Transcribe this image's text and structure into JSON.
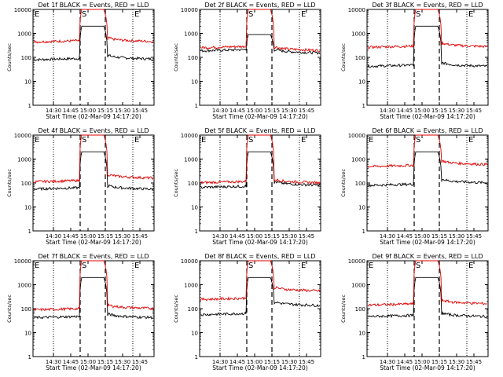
{
  "figure": {
    "background": "#ffffff"
  },
  "chart_data": [
    {
      "type": "line",
      "detector": "1f",
      "title": "Det 1f BLACK = Events, RED = LLD",
      "xlabel": "Start Time (02-Mar-09 14:17:20)",
      "ylabel": "Counts/sec",
      "x_ticks": [
        "14:30",
        "14:45",
        "15:00",
        "15:15",
        "15:30",
        "15:45"
      ],
      "y_ticks": [
        "1",
        "10",
        "100",
        "1000",
        "10000"
      ],
      "yscale": "log",
      "ylim": [
        1,
        10000
      ],
      "markers": [
        {
          "label": "E",
          "pos": "left"
        },
        {
          "label": "S",
          "pos": "mid"
        },
        {
          "label": "E",
          "pos": "right"
        }
      ],
      "series": [
        {
          "color": "#000000",
          "pre": 85,
          "post": 100,
          "in_gap": 2000
        },
        {
          "color": "#dd0000",
          "pre": 470,
          "post": 540,
          "in_gap": 10000
        }
      ]
    },
    {
      "type": "line",
      "detector": "2f",
      "title": "Det 2f BLACK = Events, RED = LLD",
      "xlabel": "Start Time (02-Mar-09 14:17:20)",
      "ylabel": "Counts/sec",
      "x_ticks": [
        "14:30",
        "14:45",
        "15:00",
        "15:15",
        "15:30",
        "15:45"
      ],
      "y_ticks": [
        "1",
        "10",
        "100",
        "1000",
        "10000"
      ],
      "yscale": "log",
      "ylim": [
        1,
        10000
      ],
      "markers": [
        {
          "label": "S",
          "pos": "mid"
        },
        {
          "label": "E",
          "pos": "right"
        }
      ],
      "series": [
        {
          "color": "#000000",
          "pre": 200,
          "post": 180,
          "in_gap": 900
        },
        {
          "color": "#dd0000",
          "pre": 270,
          "post": 230,
          "in_gap": 10000
        }
      ]
    },
    {
      "type": "line",
      "detector": "3f",
      "title": "Det 3f BLACK = Events, RED = LLD",
      "xlabel": "Start Time (02-Mar-09 14:17:20)",
      "ylabel": "Counts/sec",
      "x_ticks": [
        "14:30",
        "14:45",
        "15:00",
        "15:15",
        "15:30",
        "15:45"
      ],
      "y_ticks": [
        "1",
        "10",
        "100",
        "1000",
        "10000"
      ],
      "yscale": "log",
      "ylim": [
        1,
        10000
      ],
      "markers": [
        {
          "label": "S",
          "pos": "mid"
        },
        {
          "label": "E",
          "pos": "right"
        }
      ],
      "series": [
        {
          "color": "#000000",
          "pre": 45,
          "post": 50,
          "in_gap": 2000
        },
        {
          "color": "#dd0000",
          "pre": 280,
          "post": 330,
          "in_gap": 10000
        }
      ]
    },
    {
      "type": "line",
      "detector": "4f",
      "title": "Det 4f BLACK = Events, RED = LLD",
      "xlabel": "Start Time (02-Mar-09 14:17:20)",
      "ylabel": "Counts/sec",
      "x_ticks": [
        "14:30",
        "14:45",
        "15:00",
        "15:15",
        "15:30",
        "15:45"
      ],
      "y_ticks": [
        "1",
        "10",
        "100",
        "1000",
        "10000"
      ],
      "yscale": "log",
      "ylim": [
        1,
        10000
      ],
      "markers": [
        {
          "label": "E",
          "pos": "left"
        },
        {
          "label": "S",
          "pos": "mid"
        },
        {
          "label": "E",
          "pos": "right"
        }
      ],
      "series": [
        {
          "color": "#000000",
          "pre": 60,
          "post": 65,
          "in_gap": 2000
        },
        {
          "color": "#dd0000",
          "pre": 120,
          "post": 190,
          "in_gap": 10000
        }
      ]
    },
    {
      "type": "line",
      "detector": "5f",
      "title": "Det 5f BLACK = Events, RED = LLD",
      "xlabel": "Start Time (02-Mar-09 14:17:20)",
      "ylabel": "Counts/sec",
      "x_ticks": [
        "14:30",
        "14:45",
        "15:00",
        "15:15",
        "15:30",
        "15:45"
      ],
      "y_ticks": [
        "1",
        "10",
        "100",
        "1000",
        "10000"
      ],
      "yscale": "log",
      "ylim": [
        1,
        10000
      ],
      "markers": [
        {
          "label": "E",
          "pos": "left"
        },
        {
          "label": "S",
          "pos": "mid"
        },
        {
          "label": "E",
          "pos": "right"
        }
      ],
      "series": [
        {
          "color": "#000000",
          "pre": 70,
          "post": 95,
          "in_gap": 2000
        },
        {
          "color": "#dd0000",
          "pre": 110,
          "post": 120,
          "in_gap": 10000
        }
      ]
    },
    {
      "type": "line",
      "detector": "6f",
      "title": "Det 6f BLACK = Events, RED = LLD",
      "xlabel": "Start Time (02-Mar-09 14:17:20)",
      "ylabel": "Counts/sec",
      "x_ticks": [
        "14:30",
        "14:45",
        "15:00",
        "15:15",
        "15:30",
        "15:45"
      ],
      "y_ticks": [
        "1",
        "10",
        "100",
        "1000",
        "10000"
      ],
      "yscale": "log",
      "ylim": [
        1,
        10000
      ],
      "markers": [
        {
          "label": "E",
          "pos": "left"
        },
        {
          "label": "S",
          "pos": "mid"
        },
        {
          "label": "E",
          "pos": "right"
        }
      ],
      "series": [
        {
          "color": "#000000",
          "pre": 85,
          "post": 120,
          "in_gap": 2000
        },
        {
          "color": "#dd0000",
          "pre": 520,
          "post": 700,
          "in_gap": 10000
        }
      ]
    },
    {
      "type": "line",
      "detector": "7f",
      "title": "Det 7f BLACK = Events, RED = LLD",
      "xlabel": "Start Time (02-Mar-09 14:17:20)",
      "ylabel": "Counts/sec",
      "x_ticks": [
        "14:30",
        "14:45",
        "15:00",
        "15:15",
        "15:30",
        "15:45"
      ],
      "y_ticks": [
        "1",
        "10",
        "100",
        "1000",
        "10000"
      ],
      "yscale": "log",
      "ylim": [
        1,
        10000
      ],
      "markers": [
        {
          "label": "E",
          "pos": "left"
        },
        {
          "label": "S",
          "pos": "mid"
        },
        {
          "label": "E",
          "pos": "right"
        }
      ],
      "series": [
        {
          "color": "#000000",
          "pre": 45,
          "post": 50,
          "in_gap": 2000
        },
        {
          "color": "#dd0000",
          "pre": 95,
          "post": 120,
          "in_gap": 10000
        }
      ]
    },
    {
      "type": "line",
      "detector": "8f",
      "title": "Det 8f BLACK = Events, RED = LLD",
      "xlabel": "Start Time (02-Mar-09 14:17:20)",
      "ylabel": "Counts/sec",
      "x_ticks": [
        "14:30",
        "14:45",
        "15:00",
        "15:15",
        "15:30",
        "15:45"
      ],
      "y_ticks": [
        "1",
        "10",
        "100",
        "1000",
        "10000"
      ],
      "yscale": "log",
      "ylim": [
        1,
        10000
      ],
      "markers": [
        {
          "label": "S",
          "pos": "mid"
        },
        {
          "label": "E",
          "pos": "right"
        }
      ],
      "series": [
        {
          "color": "#000000",
          "pre": 60,
          "post": 160,
          "in_gap": 2000
        },
        {
          "color": "#dd0000",
          "pre": 260,
          "post": 650,
          "in_gap": 10000
        }
      ]
    },
    {
      "type": "line",
      "detector": "9f",
      "title": "Det 9f BLACK = Events, RED = LLD",
      "xlabel": "Start Time (02-Mar-09 14:17:20)",
      "ylabel": "Counts/sec",
      "x_ticks": [
        "14:30",
        "14:45",
        "15:00",
        "15:15",
        "15:30",
        "15:45"
      ],
      "y_ticks": [
        "1",
        "10",
        "100",
        "1000",
        "10000"
      ],
      "yscale": "log",
      "ylim": [
        1,
        10000
      ],
      "markers": [
        {
          "label": "E",
          "pos": "left"
        },
        {
          "label": "S",
          "pos": "mid"
        },
        {
          "label": "E",
          "pos": "right"
        }
      ],
      "series": [
        {
          "color": "#000000",
          "pre": 50,
          "post": 55,
          "in_gap": 2000
        },
        {
          "color": "#dd0000",
          "pre": 150,
          "post": 190,
          "in_gap": 10000
        }
      ]
    }
  ]
}
